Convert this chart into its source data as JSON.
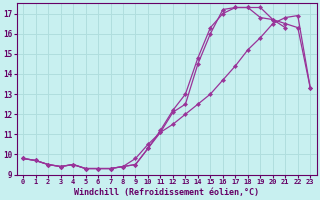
{
  "title": "",
  "xlabel": "Windchill (Refroidissement éolien,°C)",
  "background_color": "#c8f0f0",
  "line_color": "#993399",
  "grid_color": "#b0dede",
  "xlim": [
    -0.5,
    23.5
  ],
  "ylim": [
    9,
    17.5
  ],
  "yticks": [
    9,
    10,
    11,
    12,
    13,
    14,
    15,
    16,
    17
  ],
  "xticks": [
    0,
    1,
    2,
    3,
    4,
    5,
    6,
    7,
    8,
    9,
    10,
    11,
    12,
    13,
    14,
    15,
    16,
    17,
    18,
    19,
    20,
    21,
    22,
    23
  ],
  "line1_x": [
    0,
    1,
    2,
    3,
    4,
    5,
    6,
    7,
    8,
    9,
    10,
    11,
    12,
    13,
    14,
    15,
    16,
    17,
    18,
    19,
    20,
    21,
    22,
    23
  ],
  "line1_y": [
    9.8,
    9.7,
    9.5,
    9.4,
    9.5,
    9.3,
    9.3,
    9.3,
    9.4,
    9.5,
    10.3,
    11.1,
    12.1,
    12.5,
    14.5,
    16.0,
    17.2,
    17.3,
    17.3,
    16.8,
    16.7,
    16.5,
    16.3,
    13.3
  ],
  "line2_x": [
    0,
    1,
    2,
    3,
    4,
    5,
    6,
    7,
    8,
    9,
    10,
    11,
    12,
    13,
    14,
    15,
    16,
    17,
    18,
    19,
    20,
    21
  ],
  "line2_y": [
    9.8,
    9.7,
    9.5,
    9.4,
    9.5,
    9.3,
    9.3,
    9.3,
    9.4,
    9.5,
    10.3,
    11.2,
    12.2,
    13.0,
    14.8,
    16.3,
    17.0,
    17.3,
    17.3,
    17.3,
    16.7,
    16.3
  ],
  "line3_x": [
    0,
    1,
    2,
    3,
    4,
    5,
    6,
    7,
    8,
    9,
    10,
    11,
    12,
    13,
    14,
    15,
    16,
    17,
    18,
    19,
    20,
    21,
    22,
    23
  ],
  "line3_y": [
    9.8,
    9.7,
    9.5,
    9.4,
    9.5,
    9.3,
    9.3,
    9.3,
    9.4,
    9.8,
    10.5,
    11.1,
    11.5,
    12.0,
    12.5,
    13.0,
    13.7,
    14.4,
    15.2,
    15.8,
    16.5,
    16.8,
    16.9,
    13.3
  ]
}
